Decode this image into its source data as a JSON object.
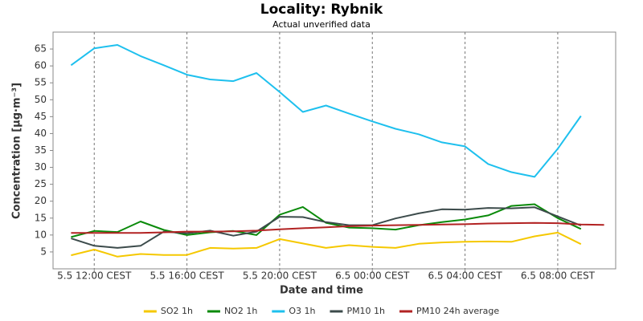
{
  "chart_data": {
    "type": "line",
    "title": "Locality: Rybnik",
    "subtitle": "Actual unverified data",
    "x_label": "Date and time",
    "y_label": "Concentration [µg·m⁻³]",
    "categories": [
      null,
      "5.5 12:00 CEST",
      null,
      null,
      null,
      "5.5 16:00 CEST",
      null,
      null,
      null,
      "5.5 20:00 CEST",
      null,
      null,
      null,
      "6.5 00:00 CEST",
      null,
      null,
      null,
      "6.5 04:00 CEST",
      null,
      null,
      null,
      "6.5 08:00 CEST",
      null,
      null
    ],
    "ylim": [
      0,
      70
    ],
    "yticks": [
      5,
      10,
      15,
      20,
      25,
      30,
      35,
      40,
      45,
      50,
      55,
      60,
      65
    ],
    "grid": "x",
    "legend": "bottom",
    "series": [
      {
        "name": "SO2 1h",
        "color": "#f5c800",
        "values": [
          4.0,
          5.7,
          3.6,
          4.4,
          4.1,
          4.1,
          6.2,
          6.0,
          6.2,
          8.8,
          7.5,
          6.2,
          7.0,
          6.5,
          6.2,
          7.4,
          7.8,
          8.0,
          8.1,
          8.0,
          9.6,
          10.7,
          7.3,
          null
        ]
      },
      {
        "name": "NO2 1h",
        "color": "#0a8a0a",
        "values": [
          9.4,
          11.2,
          10.9,
          14.0,
          11.5,
          10.0,
          10.8,
          11.2,
          10.0,
          16.0,
          18.3,
          13.6,
          12.2,
          12.0,
          11.6,
          12.9,
          13.8,
          14.6,
          15.8,
          18.6,
          19.1,
          15.0,
          11.8,
          null
        ]
      },
      {
        "name": "O3 1h",
        "color": "#1ec0ee",
        "values": [
          60.2,
          65.2,
          66.2,
          62.9,
          60.2,
          57.4,
          56.0,
          55.5,
          57.9,
          52.3,
          46.4,
          48.3,
          45.9,
          43.6,
          41.4,
          39.8,
          37.4,
          36.2,
          31.0,
          28.6,
          27.2,
          35.5,
          45.2,
          null
        ]
      },
      {
        "name": "PM10 1h",
        "color": "#3c4b4b",
        "values": [
          9.0,
          6.8,
          6.2,
          6.8,
          11.0,
          10.5,
          11.3,
          9.8,
          11.0,
          15.4,
          15.3,
          13.8,
          12.9,
          12.9,
          14.9,
          16.4,
          17.6,
          17.5,
          18.0,
          17.9,
          18.2,
          15.5,
          12.8,
          null
        ]
      },
      {
        "name": "PM10 24h average",
        "color": "#b22222",
        "values": [
          10.6,
          10.6,
          10.6,
          10.6,
          10.8,
          11.0,
          11.0,
          11.1,
          11.3,
          11.7,
          12.0,
          12.3,
          12.6,
          12.8,
          12.9,
          13.0,
          13.1,
          13.2,
          13.4,
          13.5,
          13.6,
          13.5,
          13.1,
          13.0
        ]
      }
    ]
  }
}
